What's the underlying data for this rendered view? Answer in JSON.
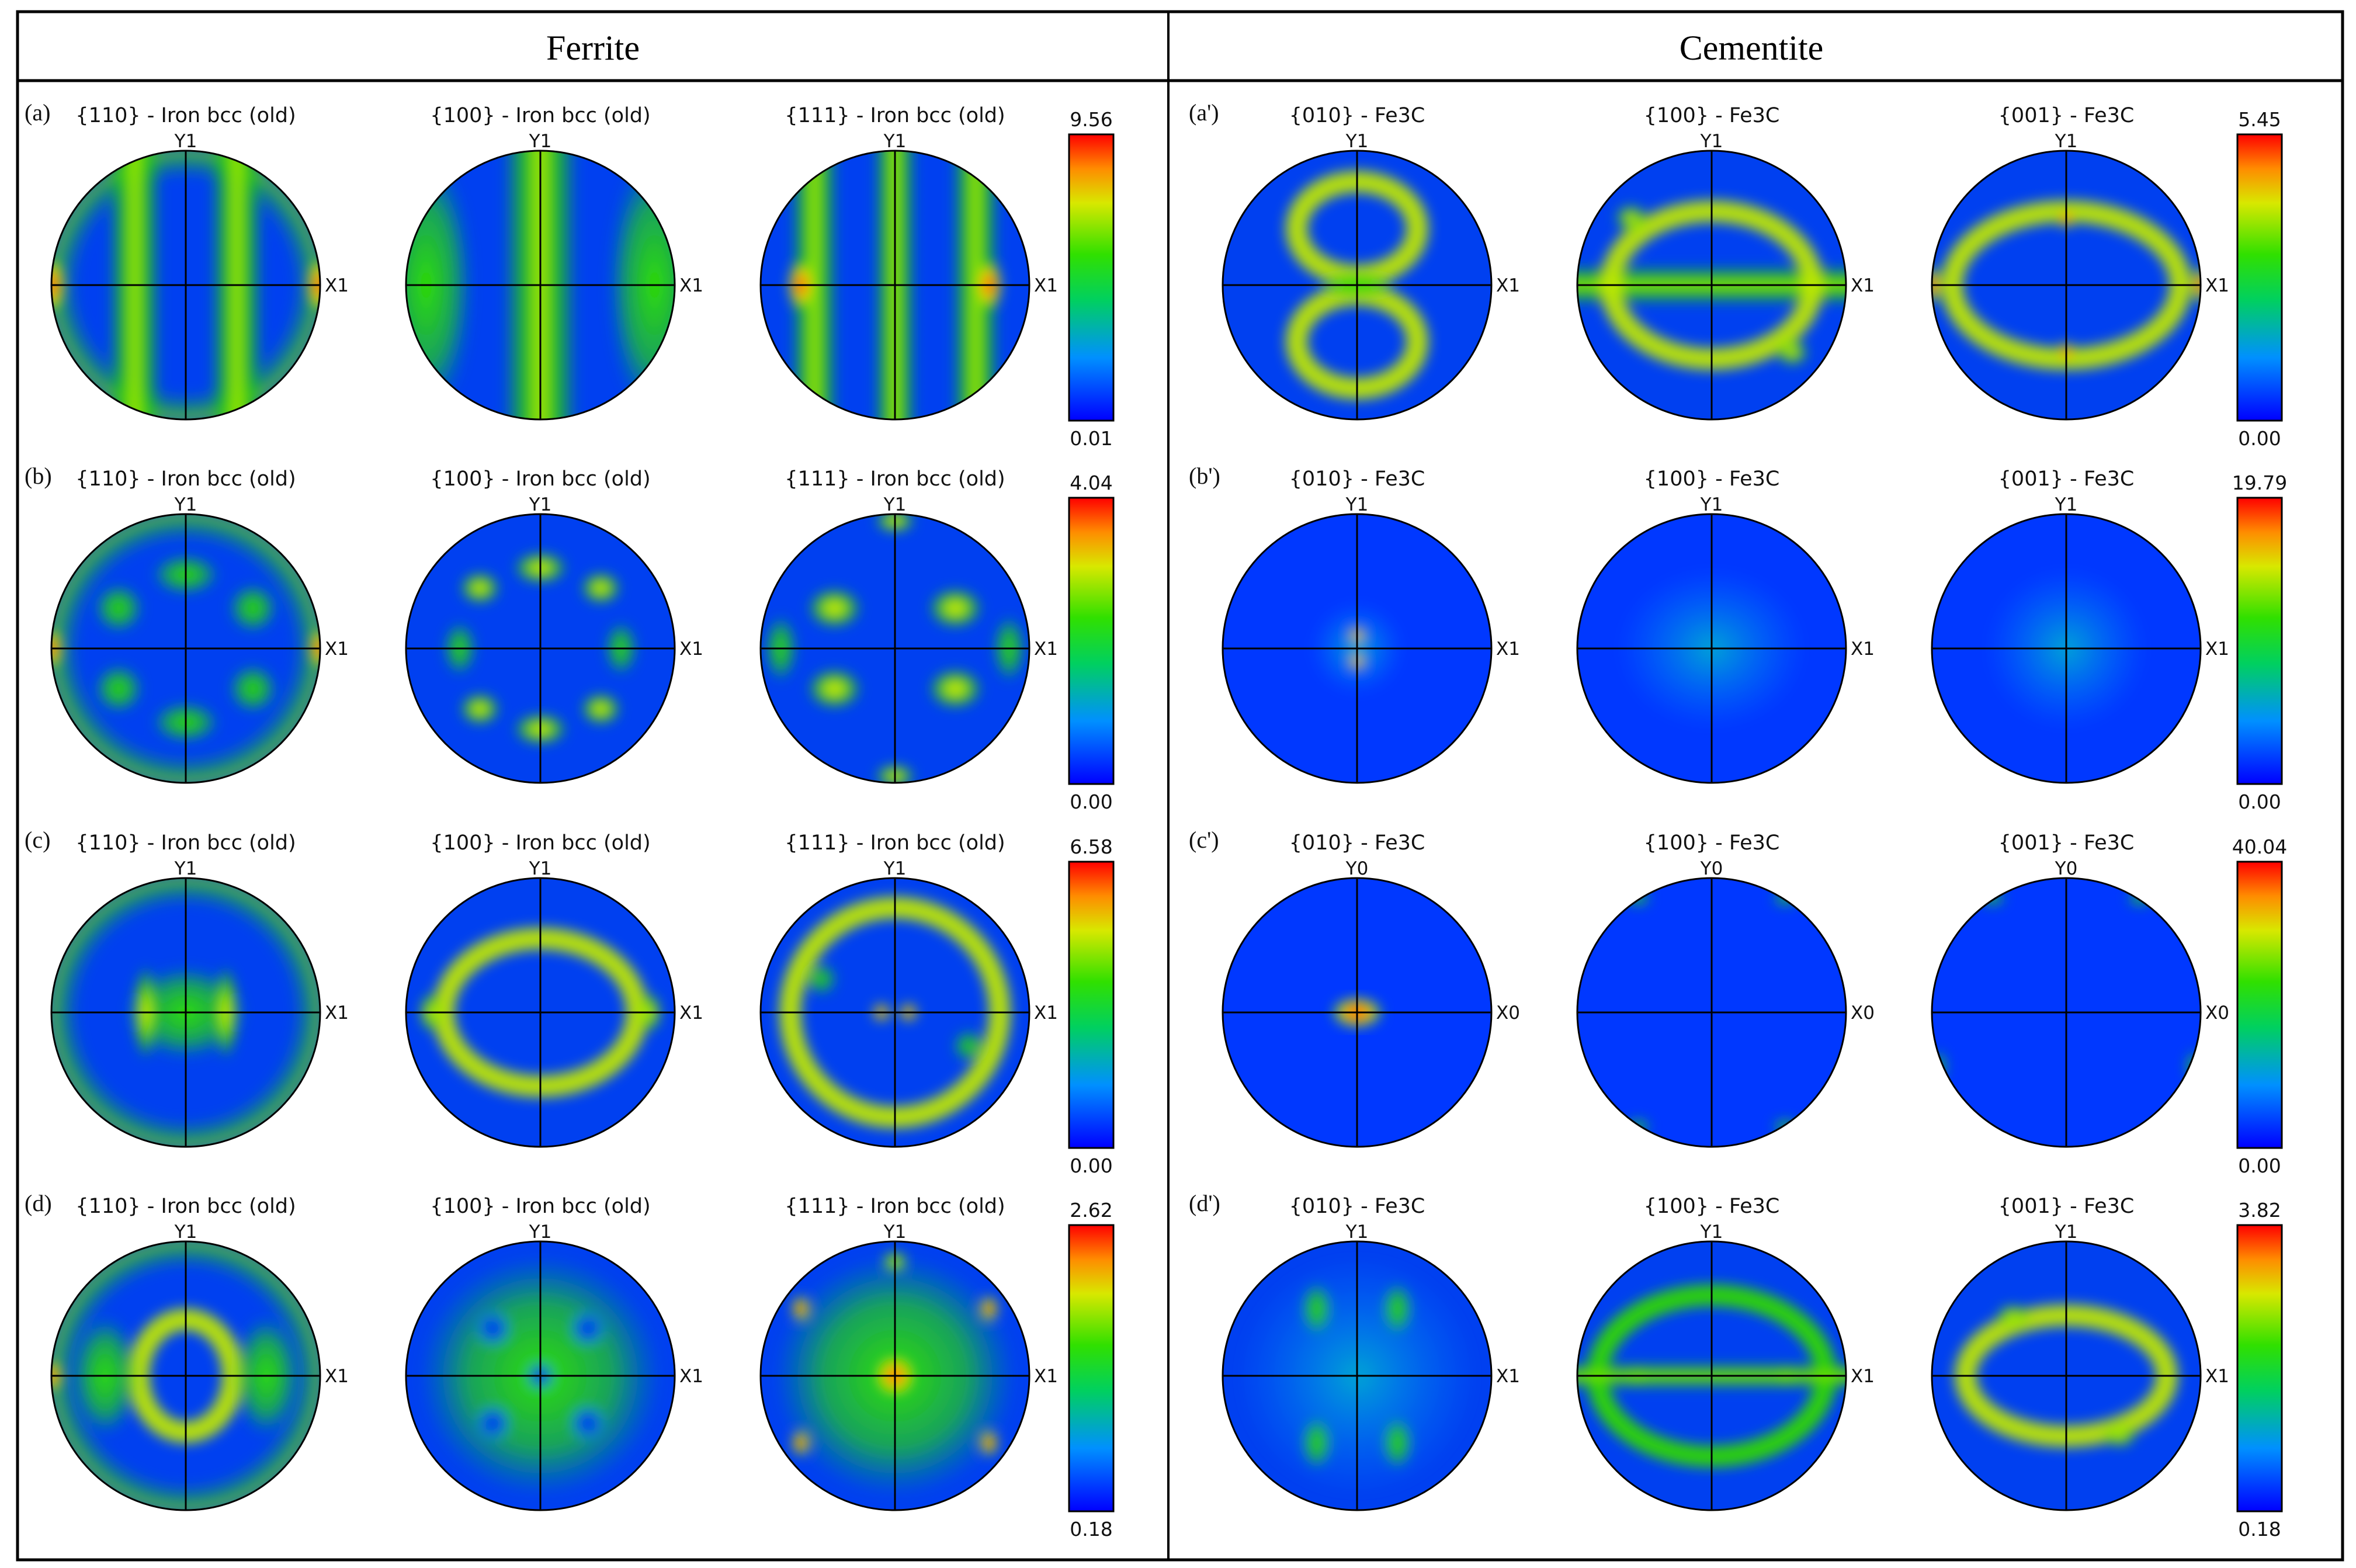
{
  "headers": {
    "ferrite": "Ferrite",
    "cementite": "Cementite"
  },
  "colors": {
    "low": "#0033ff",
    "mid": "#22d400",
    "high": "#ff1a00",
    "frame": "#000000"
  },
  "rows": [
    {
      "ferrite": {
        "label": "(a)",
        "max": "9.56",
        "min": "0.01",
        "figures": [
          {
            "title": "{110} - Iron bcc (old)",
            "ylab": "Y1",
            "xlab": "X1"
          },
          {
            "title": "{100} - Iron bcc (old)",
            "ylab": "Y1",
            "xlab": "X1"
          },
          {
            "title": "{111} - Iron bcc (old)",
            "ylab": "Y1",
            "xlab": "X1"
          }
        ]
      },
      "cementite": {
        "label": "(a')",
        "max": "5.45",
        "min": "0.00",
        "figures": [
          {
            "title": "{010} - Fe3C",
            "ylab": "Y1",
            "xlab": "X1"
          },
          {
            "title": "{100} - Fe3C",
            "ylab": "Y1",
            "xlab": "X1"
          },
          {
            "title": "{001} - Fe3C",
            "ylab": "Y1",
            "xlab": "X1"
          }
        ]
      }
    },
    {
      "ferrite": {
        "label": "(b)",
        "max": "4.04",
        "min": "0.00",
        "figures": [
          {
            "title": "{110} - Iron bcc (old)",
            "ylab": "Y1",
            "xlab": "X1"
          },
          {
            "title": "{100} - Iron bcc (old)",
            "ylab": "Y1",
            "xlab": "X1"
          },
          {
            "title": "{111} - Iron bcc (old)",
            "ylab": "Y1",
            "xlab": "X1"
          }
        ]
      },
      "cementite": {
        "label": "(b')",
        "max": "19.79",
        "min": "0.00",
        "figures": [
          {
            "title": "{010} - Fe3C",
            "ylab": "Y1",
            "xlab": "X1"
          },
          {
            "title": "{100} - Fe3C",
            "ylab": "Y1",
            "xlab": "X1"
          },
          {
            "title": "{001} - Fe3C",
            "ylab": "Y1",
            "xlab": "X1"
          }
        ]
      }
    },
    {
      "ferrite": {
        "label": "(c)",
        "max": "6.58",
        "min": "0.00",
        "figures": [
          {
            "title": "{110} - Iron bcc (old)",
            "ylab": "Y1",
            "xlab": "X1"
          },
          {
            "title": "{100} - Iron bcc (old)",
            "ylab": "Y1",
            "xlab": "X1"
          },
          {
            "title": "{111} - Iron bcc (old)",
            "ylab": "Y1",
            "xlab": "X1"
          }
        ]
      },
      "cementite": {
        "label": "(c')",
        "max": "40.04",
        "min": "0.00",
        "figures": [
          {
            "title": "{010} - Fe3C",
            "ylab": "Y0",
            "xlab": "X0"
          },
          {
            "title": "{100} - Fe3C",
            "ylab": "Y0",
            "xlab": "X0"
          },
          {
            "title": "{001} - Fe3C",
            "ylab": "Y0",
            "xlab": "X0"
          }
        ]
      }
    },
    {
      "ferrite": {
        "label": "(d)",
        "max": "2.62",
        "min": "0.18",
        "figures": [
          {
            "title": "{110} - Iron bcc (old)",
            "ylab": "Y1",
            "xlab": "X1"
          },
          {
            "title": "{100} - Iron bcc (old)",
            "ylab": "Y1",
            "xlab": "X1"
          },
          {
            "title": "{111} - Iron bcc (old)",
            "ylab": "Y1",
            "xlab": "X1"
          }
        ]
      },
      "cementite": {
        "label": "(d')",
        "max": "3.82",
        "min": "0.18",
        "figures": [
          {
            "title": "{010} - Fe3C",
            "ylab": "Y1",
            "xlab": "X1"
          },
          {
            "title": "{100} - Fe3C",
            "ylab": "Y1",
            "xlab": "X1"
          },
          {
            "title": "{001} - Fe3C",
            "ylab": "Y1",
            "xlab": "X1"
          }
        ]
      }
    }
  ]
}
